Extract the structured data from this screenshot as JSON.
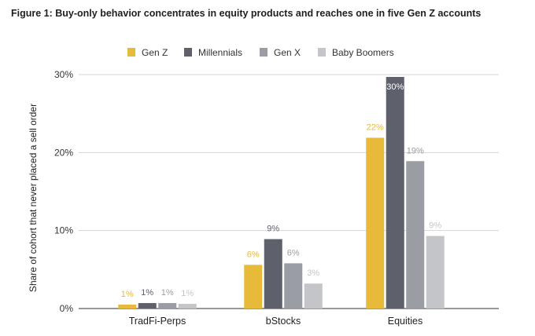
{
  "chart_data": {
    "type": "bar",
    "title": "Figure 1: Buy-only behavior concentrates in equity products and reaches one in five Gen Z accounts",
    "xlabel": "",
    "ylabel": "Share of cohort that never placed a sell order",
    "ylim": [
      0,
      30
    ],
    "yticks": [
      0,
      10,
      20,
      30
    ],
    "ytick_labels": [
      "0%",
      "10%",
      "20%",
      "30%"
    ],
    "grid": true,
    "legend_position": "top",
    "categories": [
      "TradFi-Perps",
      "bStocks",
      "Equities"
    ],
    "series": [
      {
        "name": "Gen Z",
        "color": "#E8BA3A",
        "values": [
          0.5,
          5.6,
          21.9
        ],
        "labels": [
          "1%",
          "6%",
          "22%"
        ]
      },
      {
        "name": "Millennials",
        "color": "#5E616B",
        "values": [
          0.7,
          8.9,
          29.7
        ],
        "labels": [
          "1%",
          "9%",
          "30%"
        ]
      },
      {
        "name": "Gen X",
        "color": "#9A9DA4",
        "values": [
          0.7,
          5.8,
          18.9
        ],
        "labels": [
          "1%",
          "6%",
          "19%"
        ]
      },
      {
        "name": "Baby Boomers",
        "color": "#C3C5C9",
        "values": [
          0.6,
          3.2,
          9.3
        ],
        "labels": [
          "1%",
          "3%",
          "9%"
        ]
      }
    ]
  }
}
